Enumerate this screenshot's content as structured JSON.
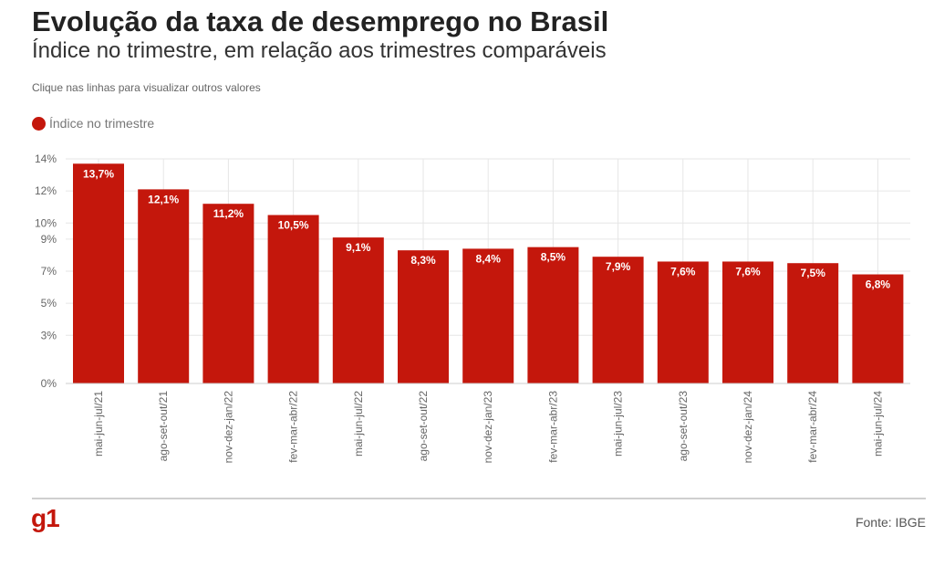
{
  "header": {
    "title": "Evolução da taxa de desemprego no Brasil",
    "subtitle": "Índice no trimestre, em relação aos trimestres comparáveis",
    "instruction": "Clique nas linhas para visualizar outros valores"
  },
  "legend": {
    "label": "Índice no trimestre",
    "color": "#c4170c"
  },
  "footer": {
    "logo": "g1",
    "source": "Fonte: IBGE"
  },
  "colors": {
    "bar": "#c4170c",
    "grid": "#e6e6e6",
    "axis_text": "#666666",
    "data_label": "#ffffff"
  },
  "chart_data": {
    "type": "bar",
    "title": "Evolução da taxa de desemprego no Brasil",
    "subtitle": "Índice no trimestre, em relação aos trimestres comparáveis",
    "categories": [
      "mai-jun-jul/21",
      "ago-set-out/21",
      "nov-dez-jan/22",
      "fev-mar-abr/22",
      "mai-jun-jul/22",
      "ago-set-out/22",
      "nov-dez-jan/23",
      "fev-mar-abr/23",
      "mai-jun-jul/23",
      "ago-set-out/23",
      "nov-dez-jan/24",
      "fev-mar-abr/24",
      "mai-jun-jul/24"
    ],
    "series": [
      {
        "name": "Índice no trimestre",
        "values": [
          13.7,
          12.1,
          11.2,
          10.5,
          9.1,
          8.3,
          8.4,
          8.5,
          7.9,
          7.6,
          7.6,
          7.5,
          6.8
        ],
        "labels": [
          "13,7%",
          "12,1%",
          "11,2%",
          "10,5%",
          "9,1%",
          "8,3%",
          "8,4%",
          "8,5%",
          "7,9%",
          "7,6%",
          "7,6%",
          "7,5%",
          "6,8%"
        ]
      }
    ],
    "yticks": [
      0,
      3,
      5,
      7,
      9,
      10,
      12,
      14
    ],
    "ytick_labels": [
      "0%",
      "3%",
      "5%",
      "7%",
      "9%",
      "10%",
      "12%",
      "14%"
    ],
    "ylim": [
      0,
      14
    ],
    "grid": true,
    "legend_position": "top-left"
  }
}
